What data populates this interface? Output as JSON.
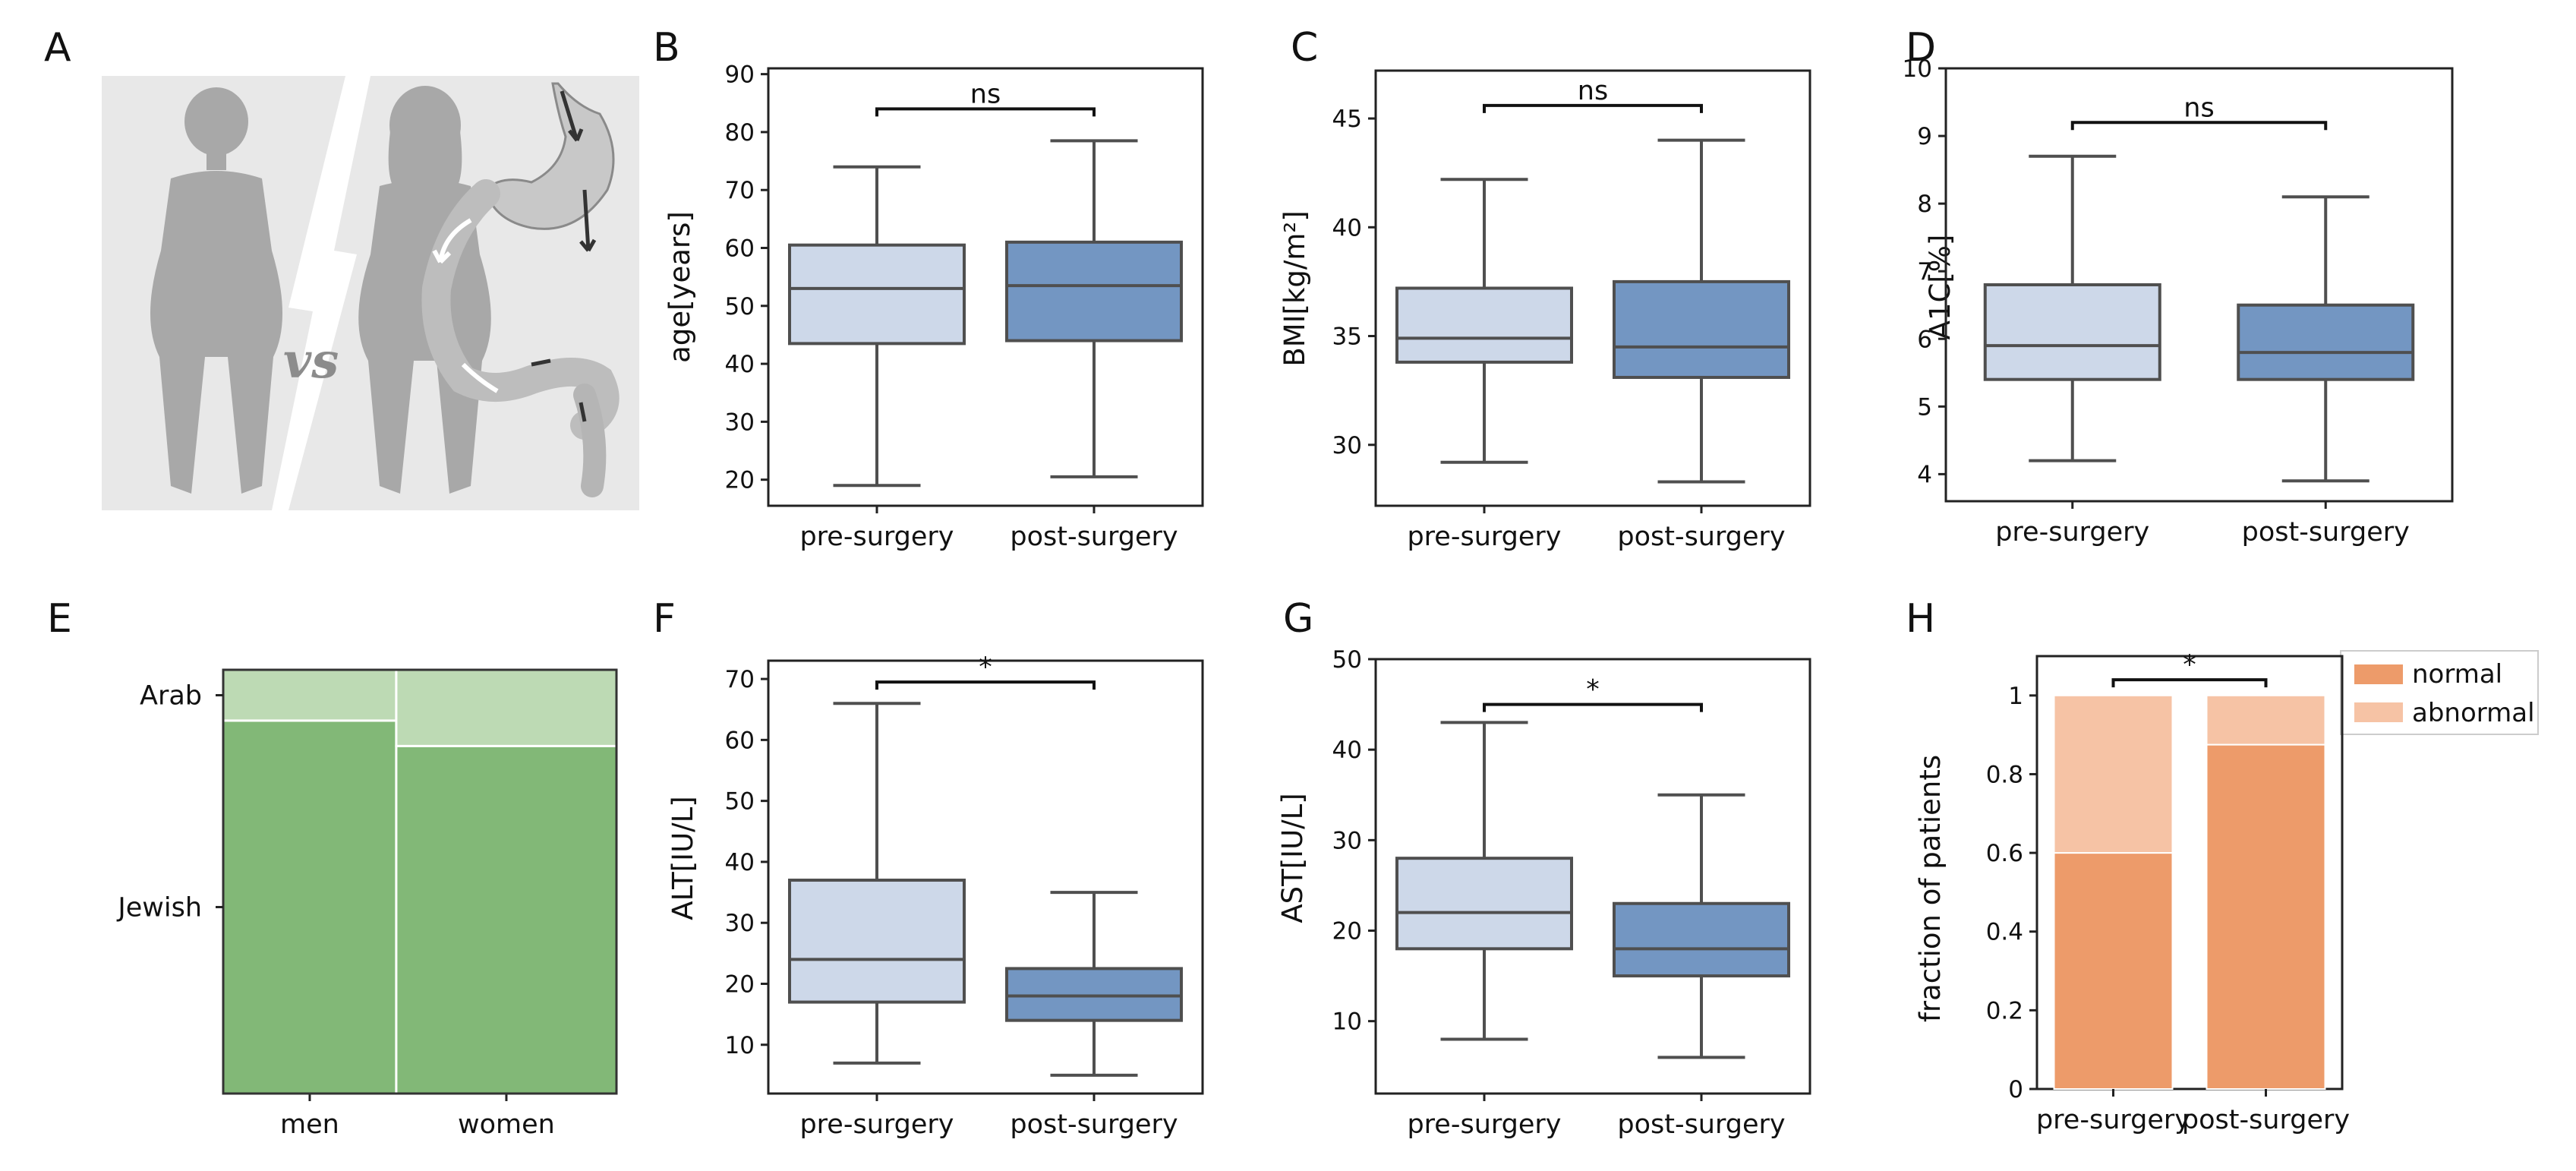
{
  "panels": {
    "A": {
      "letter": "A",
      "vs_text": "vs"
    },
    "E": {
      "letter": "E"
    }
  },
  "colors": {
    "pre_box": "#cdd8e9",
    "post_box": "#7396c2",
    "box_edge": "#4f4f4f",
    "normal": "#ed9b6a",
    "abnormal": "#f6c3a5",
    "jewish": "#82b877",
    "arab": "#bddab4",
    "silhouette": "#a8a8a8",
    "bg_a": "#e8e8e8"
  },
  "chart_data": [
    {
      "id": "B",
      "letter": "B",
      "type": "box",
      "title": "",
      "xlabel": "",
      "ylabel": "age[years]",
      "ylim": [
        15.5,
        91
      ],
      "yticks": [
        20,
        30,
        40,
        50,
        60,
        70,
        80,
        90
      ],
      "ytick_labels": [
        "20",
        "30",
        "40",
        "50",
        "60",
        "70",
        "80",
        "90"
      ],
      "categories": [
        "pre-surgery",
        "post-surgery"
      ],
      "series": [
        {
          "name": "pre-surgery",
          "whisker_low": 19,
          "q1": 43.5,
          "median": 53,
          "q3": 60.5,
          "whisker_high": 74
        },
        {
          "name": "post-surgery",
          "whisker_low": 20.5,
          "q1": 44,
          "median": 53.5,
          "q3": 61,
          "whisker_high": 78.5
        }
      ],
      "significance": "ns",
      "sig_y": 84
    },
    {
      "id": "C",
      "letter": "C",
      "type": "box",
      "title": "",
      "xlabel": "",
      "ylabel": "BMI[kg/m²]",
      "ylim": [
        27.2,
        47.2
      ],
      "yticks": [
        30,
        35,
        40,
        45
      ],
      "ytick_labels": [
        "30",
        "35",
        "40",
        "45"
      ],
      "categories": [
        "pre-surgery",
        "post-surgery"
      ],
      "series": [
        {
          "name": "pre-surgery",
          "whisker_low": 29.2,
          "q1": 33.8,
          "median": 34.9,
          "q3": 37.2,
          "whisker_high": 42.2
        },
        {
          "name": "post-surgery",
          "whisker_low": 28.3,
          "q1": 33.1,
          "median": 34.5,
          "q3": 37.5,
          "whisker_high": 44
        }
      ],
      "significance": "ns",
      "sig_y": 45.6
    },
    {
      "id": "D",
      "letter": "D",
      "type": "box",
      "title": "",
      "xlabel": "",
      "ylabel": "A1C[%]",
      "ylim": [
        3.6,
        10
      ],
      "yticks": [
        4,
        5,
        6,
        7,
        8,
        9,
        10
      ],
      "ytick_labels": [
        "4",
        "5",
        "6",
        "7",
        "8",
        "9",
        "10"
      ],
      "categories": [
        "pre-surgery",
        "post-surgery"
      ],
      "series": [
        {
          "name": "pre-surgery",
          "whisker_low": 4.2,
          "q1": 5.4,
          "median": 5.9,
          "q3": 6.8,
          "whisker_high": 8.7
        },
        {
          "name": "post-surgery",
          "whisker_low": 3.9,
          "q1": 5.4,
          "median": 5.8,
          "q3": 6.5,
          "whisker_high": 8.1
        }
      ],
      "significance": "ns",
      "sig_y": 9.2
    },
    {
      "id": "E",
      "letter": "E",
      "type": "mosaic",
      "title": "",
      "xlabel": "",
      "ylabel": "",
      "categories": [
        "men",
        "women"
      ],
      "column_share": [
        0.44,
        0.56
      ],
      "rows": [
        "Arab",
        "Jewish"
      ],
      "arab_fraction": [
        0.12,
        0.18
      ]
    },
    {
      "id": "F",
      "letter": "F",
      "type": "box",
      "title": "",
      "xlabel": "",
      "ylabel": "ALT[IU/L]",
      "ylim": [
        2,
        73
      ],
      "yticks": [
        10,
        20,
        30,
        40,
        50,
        60,
        70
      ],
      "ytick_labels": [
        "10",
        "20",
        "30",
        "40",
        "50",
        "60",
        "70"
      ],
      "categories": [
        "pre-surgery",
        "post-surgery"
      ],
      "series": [
        {
          "name": "pre-surgery",
          "whisker_low": 7,
          "q1": 17,
          "median": 24,
          "q3": 37,
          "whisker_high": 66
        },
        {
          "name": "post-surgery",
          "whisker_low": 5,
          "q1": 14,
          "median": 18,
          "q3": 22.5,
          "whisker_high": 35
        }
      ],
      "significance": "*",
      "sig_y": 69.5
    },
    {
      "id": "G",
      "letter": "G",
      "type": "box",
      "title": "",
      "xlabel": "",
      "ylabel": "AST[IU/L]",
      "ylim": [
        2,
        50
      ],
      "yticks": [
        10,
        20,
        30,
        40,
        50
      ],
      "ytick_labels": [
        "10",
        "20",
        "30",
        "40",
        "50"
      ],
      "categories": [
        "pre-surgery",
        "post-surgery"
      ],
      "series": [
        {
          "name": "pre-surgery",
          "whisker_low": 8,
          "q1": 18,
          "median": 22,
          "q3": 28,
          "whisker_high": 43
        },
        {
          "name": "post-surgery",
          "whisker_low": 6,
          "q1": 15,
          "median": 18,
          "q3": 23,
          "whisker_high": 35
        }
      ],
      "significance": "*",
      "sig_y": 45
    },
    {
      "id": "H",
      "letter": "H",
      "type": "bar",
      "stacked": true,
      "title": "",
      "xlabel": "",
      "ylabel": "fraction of patients",
      "ylim": [
        0,
        1.1
      ],
      "yticks": [
        0,
        0.2,
        0.4,
        0.6,
        0.8,
        1
      ],
      "ytick_labels": [
        "0",
        "0.2",
        "0.4",
        "0.6",
        "0.8",
        "1"
      ],
      "categories": [
        "pre-surgery",
        "post-surgery"
      ],
      "series": [
        {
          "name": "normal",
          "values": [
            0.6,
            0.875
          ]
        },
        {
          "name": "abnormal",
          "values": [
            0.4,
            0.125
          ]
        }
      ],
      "legend": [
        "normal",
        "abnormal"
      ],
      "legend_position": "outside-top-right",
      "significance": "*",
      "sig_y": 1.04
    }
  ]
}
